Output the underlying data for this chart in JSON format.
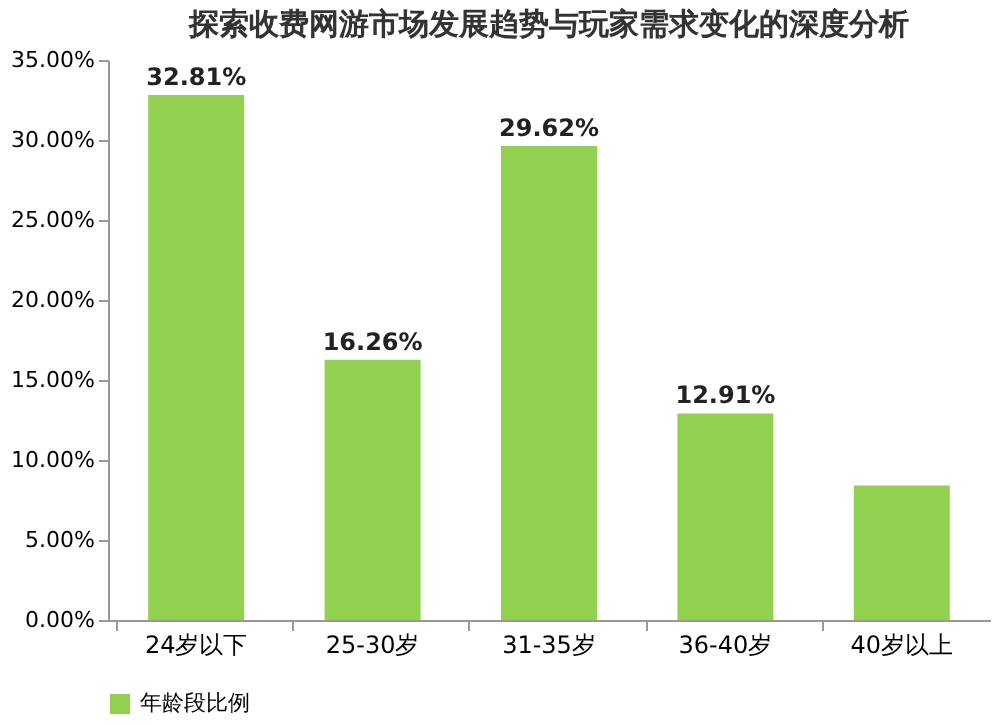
{
  "chart_data": {
    "type": "bar",
    "title": "探索收费网游市场发展趋势与玩家需求变化的深度分析",
    "categories": [
      "24岁以下",
      "25-30岁",
      "31-35岁",
      "36-40岁",
      "40岁以上"
    ],
    "series": [
      {
        "name": "年龄段比例",
        "color": "#92d050",
        "values": [
          32.81,
          16.26,
          29.62,
          12.91,
          8.4
        ],
        "value_labels": [
          "32.81%",
          "16.26%",
          "29.62%",
          "12.91%",
          null
        ]
      }
    ],
    "ylim": [
      0,
      35
    ],
    "yticks": [
      {
        "value": 0,
        "label": "0.00%"
      },
      {
        "value": 5,
        "label": "5.00%"
      },
      {
        "value": 10,
        "label": "10.00%"
      },
      {
        "value": 15,
        "label": "15.00%"
      },
      {
        "value": 20,
        "label": "20.00%"
      },
      {
        "value": 25,
        "label": "25.00%"
      },
      {
        "value": 30,
        "label": "30.00%"
      },
      {
        "value": 35,
        "label": "35.00%"
      }
    ],
    "grid": false,
    "legend": "bottom"
  }
}
